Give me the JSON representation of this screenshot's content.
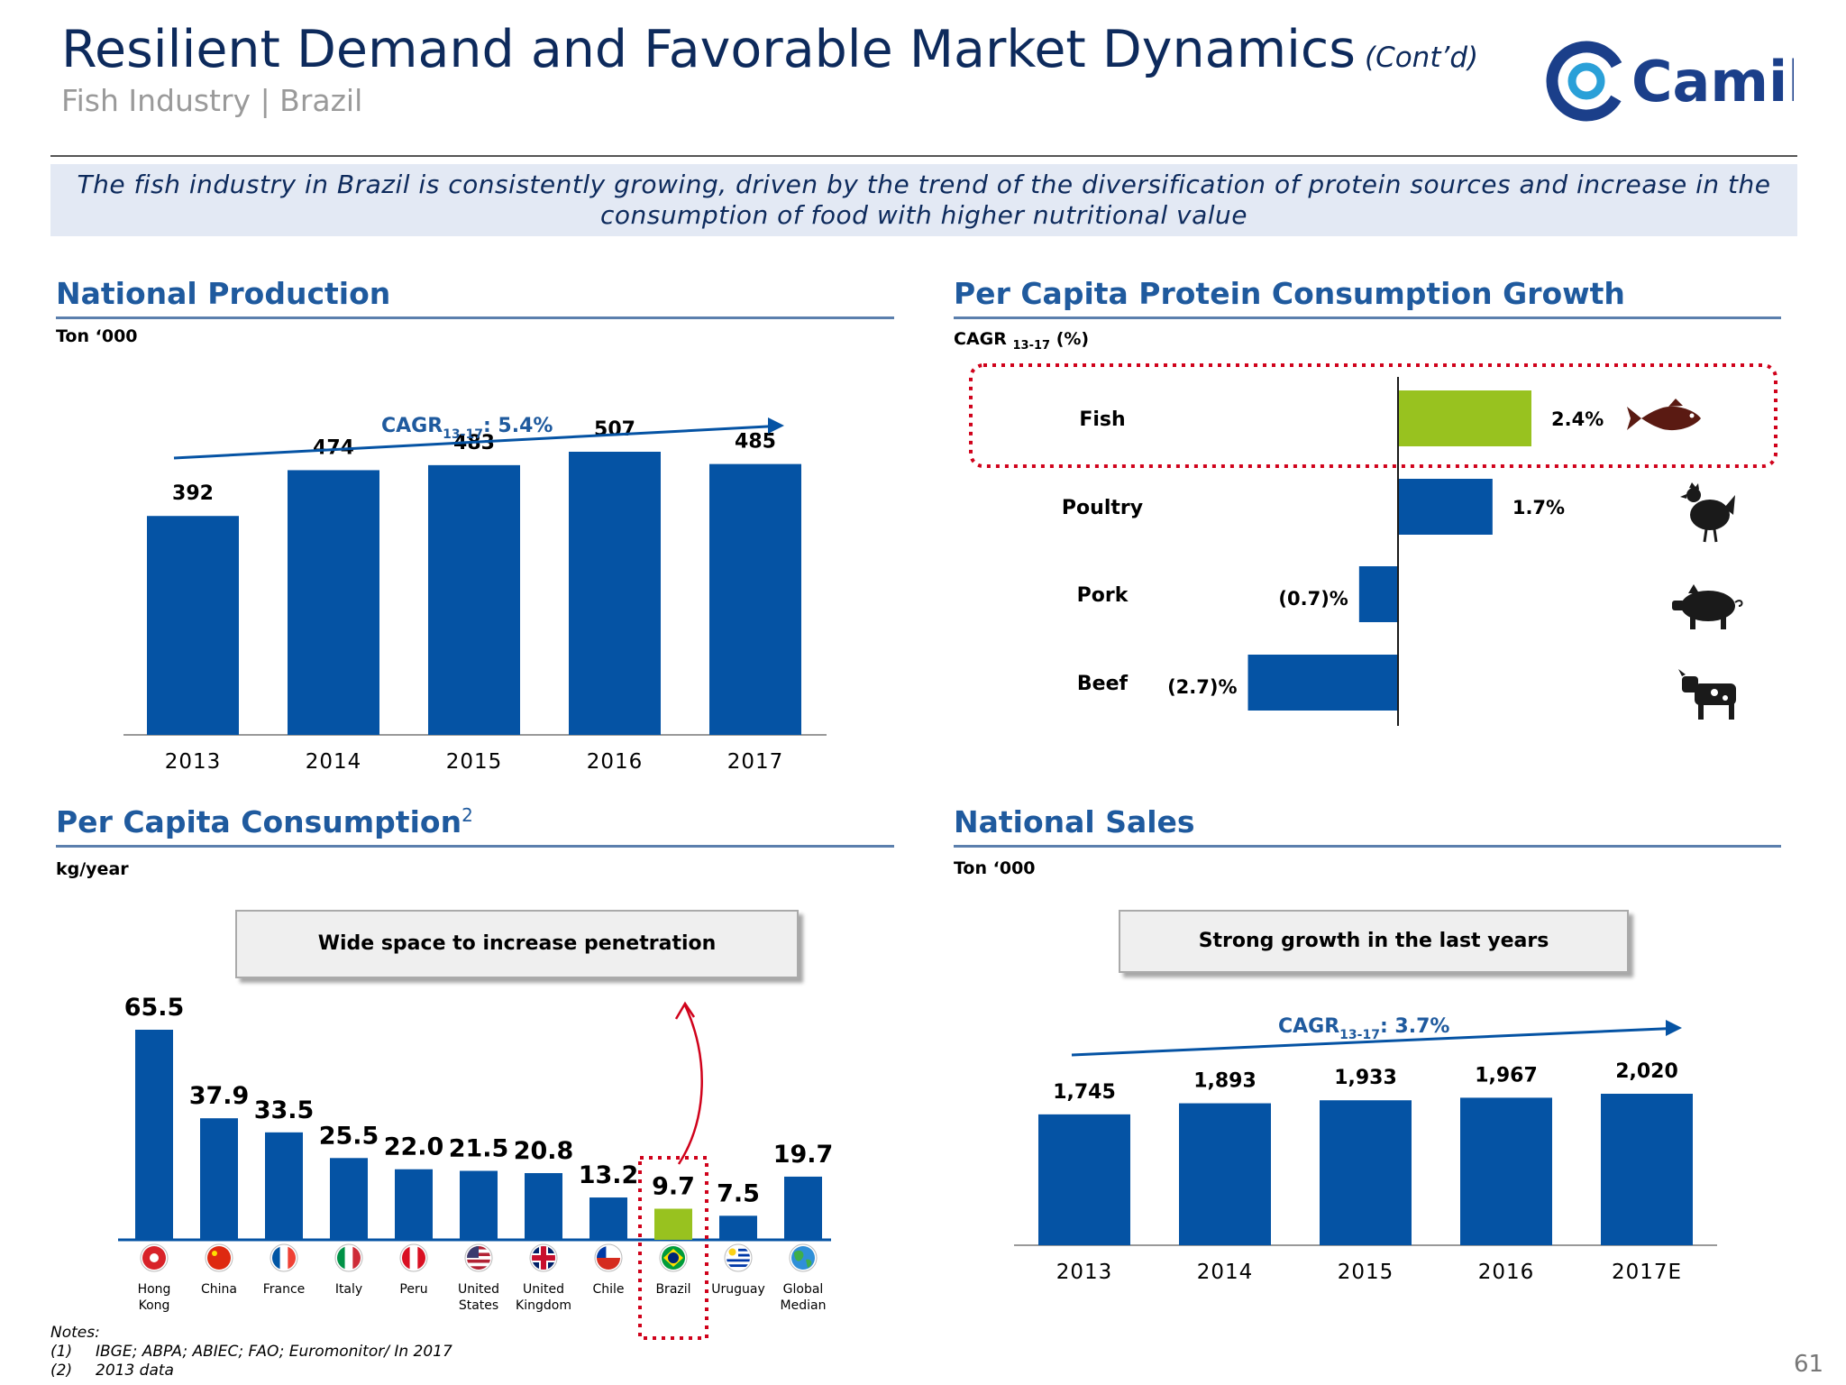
{
  "header": {
    "title": "Resilient Demand and Favorable Market Dynamics",
    "title_suffix": "(Cont’d)",
    "subtitle": "Fish Industry | Brazil",
    "logo_text": "Camil",
    "banner": "The fish industry in Brazil is consistently growing, driven by the trend of the diversification of protein sources and increase in the consumption of food with higher nutritional value"
  },
  "colors": {
    "bar_blue": "#0553a4",
    "highlight_green": "#98c21f",
    "title_navy": "#0d2a5c",
    "section_blue": "#1f5a9e",
    "dotted_red": "#d0021b"
  },
  "sections": {
    "production": {
      "title": "National Production",
      "unit": "Ton ‘000"
    },
    "protein": {
      "title": "Per Capita Protein Consumption Growth",
      "unit_main": "CAGR",
      "unit_sub": "13-17",
      "unit_suffix": "(%)"
    },
    "consumption": {
      "title": "Per Capita Consumption",
      "title_sup": "2",
      "unit": "kg/year",
      "callout": "Wide space to increase penetration"
    },
    "sales": {
      "title": "National Sales",
      "unit": "Ton ‘000",
      "callout": "Strong growth in the last years"
    }
  },
  "chart_data": [
    {
      "id": "national-production",
      "type": "bar",
      "categories": [
        "2013",
        "2014",
        "2015",
        "2016",
        "2017"
      ],
      "values": [
        392,
        474,
        483,
        507,
        485
      ],
      "labels": [
        "392",
        "474",
        "483",
        "507",
        "485"
      ],
      "ylim": [
        0,
        600
      ],
      "annotation": {
        "main": "CAGR",
        "sub": "13-17",
        "suffix": ": 5.4%"
      }
    },
    {
      "id": "protein-growth",
      "type": "bar",
      "orientation": "horizontal",
      "categories": [
        "Fish",
        "Poultry",
        "Pork",
        "Beef"
      ],
      "values": [
        2.4,
        1.7,
        -0.7,
        -2.7
      ],
      "labels": [
        "2.4%",
        "1.7%",
        "(0.7)%",
        "(2.7)%"
      ],
      "icons": [
        "fish-icon",
        "chicken-icon",
        "pig-icon",
        "cow-icon"
      ],
      "highlight": "Fish"
    },
    {
      "id": "per-capita-consumption",
      "type": "bar",
      "categories": [
        "Hong Kong",
        "China",
        "France",
        "Italy",
        "Peru",
        "United States",
        "United Kingdom",
        "Chile",
        "Brazil",
        "Uruguay",
        "Global Median"
      ],
      "category_lines": [
        [
          "Hong",
          "Kong"
        ],
        [
          "China"
        ],
        [
          "France"
        ],
        [
          "Italy"
        ],
        [
          "Peru"
        ],
        [
          "United",
          "States"
        ],
        [
          "United",
          "Kingdom"
        ],
        [
          "Chile"
        ],
        [
          "Brazil"
        ],
        [
          "Uruguay"
        ],
        [
          "Global",
          "Median"
        ]
      ],
      "values": [
        65.5,
        37.9,
        33.5,
        25.5,
        22.0,
        21.5,
        20.8,
        13.2,
        9.7,
        7.5,
        19.7
      ],
      "labels": [
        "65.5",
        "37.9",
        "33.5",
        "25.5",
        "22.0",
        "21.5",
        "20.8",
        "13.2",
        "9.7",
        "7.5",
        "19.7"
      ],
      "flags": [
        "hong-kong-flag-icon",
        "china-flag-icon",
        "france-flag-icon",
        "italy-flag-icon",
        "peru-flag-icon",
        "united-states-flag-icon",
        "united-kingdom-flag-icon",
        "chile-flag-icon",
        "brazil-flag-icon",
        "uruguay-flag-icon",
        "globe-icon"
      ],
      "highlight": "Brazil"
    },
    {
      "id": "national-sales",
      "type": "bar",
      "categories": [
        "2013",
        "2014",
        "2015",
        "2016",
        "2017E"
      ],
      "values": [
        1745,
        1893,
        1933,
        1967,
        2020
      ],
      "labels": [
        "1,745",
        "1,893",
        "1,933",
        "1,967",
        "2,020"
      ],
      "annotation": {
        "main": "CAGR",
        "sub": "13-17",
        "suffix": ": 3.7%"
      }
    }
  ],
  "notes": {
    "heading": "Notes:",
    "items": [
      {
        "num": "(1)",
        "text": "IBGE; ABPA; ABIEC; FAO; Euromonitor/ In 2017"
      },
      {
        "num": "(2)",
        "text": "2013 data"
      }
    ]
  },
  "page_number": "61"
}
